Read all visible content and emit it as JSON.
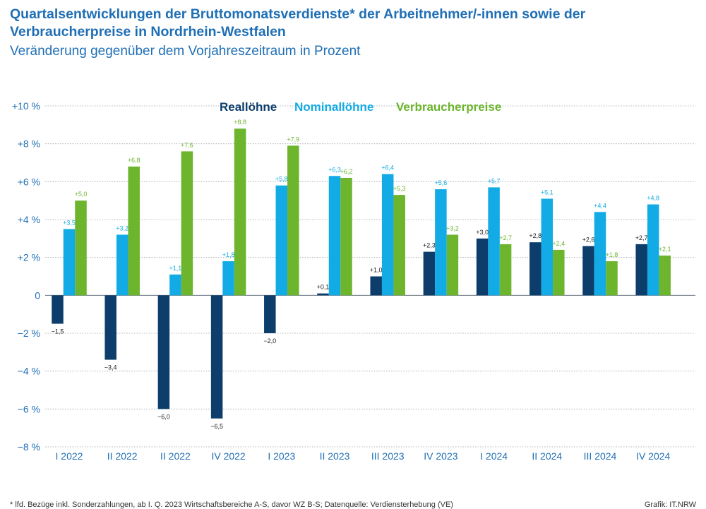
{
  "header": {
    "title": "Quartalsentwicklungen der Bruttomonatsverdienste* der Arbeitnehmer/-innen sowie der Verbraucherpreise in Nordrhein-Westfalen",
    "subtitle": "Veränderung gegenüber dem Vorjahreszeitraum in Prozent"
  },
  "footer": {
    "footnote": "* lfd. Bezüge inkl. Sonderzahlungen, ab I. Q. 2023 Wirtschaftsbereiche A-S, davor WZ B-S; Datenquelle: Verdiensterhebung (VE)",
    "credit": "Grafik: IT.NRW"
  },
  "colors": {
    "reallohne": "#0d3d6b",
    "nominallohne": "#12abe6",
    "verbraucherpreise": "#6cb52d",
    "axis_text": "#1f6fb5",
    "grid": "#9aa3ab"
  },
  "chart_data": {
    "type": "bar",
    "title": "Quartalsentwicklungen der Bruttomonatsverdienste* der Arbeitnehmer/-innen sowie der Verbraucherpreise in Nordrhein-Westfalen",
    "subtitle": "Veränderung gegenüber dem Vorjahreszeitraum in Prozent",
    "categories": [
      "I 2022",
      "II 2022",
      "II 2022",
      "IV 2022",
      "I 2023",
      "II 2023",
      "III  2023",
      "IV 2023",
      "I 2024",
      "II 2024",
      "III 2024",
      "IV 2024"
    ],
    "series": [
      {
        "name": "Reallöhne",
        "color": "#0d3d6b",
        "values": [
          -1.5,
          -3.4,
          -6.0,
          -6.5,
          -2.0,
          0.1,
          1.0,
          2.3,
          3.0,
          2.8,
          2.6,
          2.7
        ],
        "labels": [
          "−1,5",
          "−3,4",
          "−6,0",
          "−6,5",
          "−2,0",
          "+0,1",
          "+1,0",
          "+2,3",
          "+3,0",
          "+2,8",
          "+2,6",
          "+2,7"
        ]
      },
      {
        "name": "Nominallöhne",
        "color": "#12abe6",
        "values": [
          3.5,
          3.2,
          1.1,
          1.8,
          5.8,
          6.3,
          6.4,
          5.6,
          5.7,
          5.1,
          4.4,
          4.8
        ],
        "labels": [
          "+3,5",
          "+3,2",
          "+1,1",
          "+1,8",
          "+5,8",
          "+6,3",
          "+6,4",
          "+5,6",
          "+5,7",
          "+5,1",
          "+4,4",
          "+4,8"
        ]
      },
      {
        "name": "Verbraucherpreise",
        "color": "#6cb52d",
        "values": [
          5.0,
          6.8,
          7.6,
          8.8,
          7.9,
          6.2,
          5.3,
          3.2,
          2.7,
          2.4,
          1.8,
          2.1
        ],
        "labels": [
          "+5,0",
          "+6,8",
          "+7,6",
          "+8,8",
          "+7,9",
          "+6,2",
          "+5,3",
          "+3,2",
          "+2,7",
          "+2,4",
          "+1,8",
          "+2,1"
        ]
      }
    ],
    "ylim": [
      -8,
      10
    ],
    "yticks": [
      10,
      8,
      6,
      4,
      2,
      0,
      -2,
      -4,
      -6,
      -8
    ],
    "ytick_labels": [
      "+10 %",
      "+8 %",
      "+6 %",
      "+4 %",
      "+2 %",
      "0",
      "−2 %",
      "−4 %",
      "−6 %",
      "−8 %"
    ],
    "grid": true,
    "legend_position": "top-center"
  }
}
